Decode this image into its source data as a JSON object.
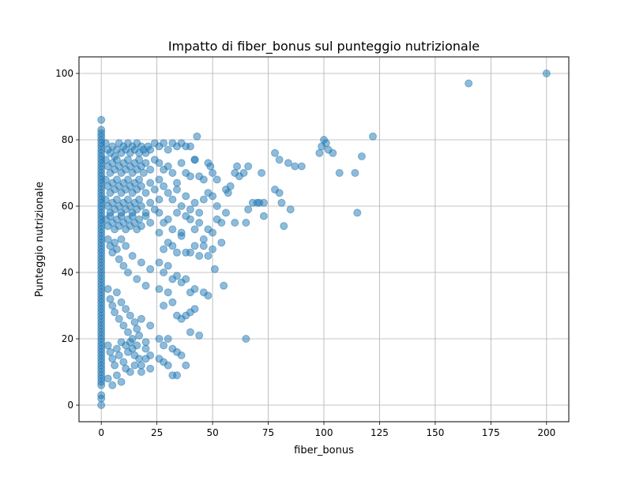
{
  "chart_data": {
    "type": "scatter",
    "title": "Impatto di fiber_bonus sul punteggio nutrizionale",
    "xlabel": "fiber_bonus",
    "ylabel": "Punteggio nutrizionale",
    "xlim": [
      -10,
      210
    ],
    "ylim": [
      -5,
      105
    ],
    "xticks": [
      0,
      25,
      50,
      75,
      100,
      125,
      150,
      175,
      200
    ],
    "yticks": [
      0,
      20,
      40,
      60,
      80,
      100
    ],
    "grid": true,
    "marker_color": "#1f77b4",
    "marker_alpha": 0.5,
    "points": [
      [
        0,
        86
      ],
      [
        0,
        83
      ],
      [
        0,
        82
      ],
      [
        0,
        81
      ],
      [
        0,
        80
      ],
      [
        0,
        79
      ],
      [
        0,
        78
      ],
      [
        0,
        77
      ],
      [
        0,
        76
      ],
      [
        0,
        75
      ],
      [
        0,
        74
      ],
      [
        0,
        73
      ],
      [
        0,
        72
      ],
      [
        0,
        71
      ],
      [
        0,
        70
      ],
      [
        0,
        69
      ],
      [
        0,
        68
      ],
      [
        0,
        67
      ],
      [
        0,
        66
      ],
      [
        0,
        65
      ],
      [
        0,
        64
      ],
      [
        0,
        63
      ],
      [
        0,
        62
      ],
      [
        0,
        61
      ],
      [
        0,
        60
      ],
      [
        0,
        59
      ],
      [
        0,
        58
      ],
      [
        0,
        57
      ],
      [
        0,
        56
      ],
      [
        0,
        55
      ],
      [
        0,
        54
      ],
      [
        0,
        53
      ],
      [
        0,
        52
      ],
      [
        0,
        51
      ],
      [
        0,
        50
      ],
      [
        0,
        49
      ],
      [
        0,
        48
      ],
      [
        0,
        47
      ],
      [
        0,
        46
      ],
      [
        0,
        45
      ],
      [
        0,
        44
      ],
      [
        0,
        43
      ],
      [
        0,
        42
      ],
      [
        0,
        41
      ],
      [
        0,
        40
      ],
      [
        0,
        39
      ],
      [
        0,
        38
      ],
      [
        0,
        37
      ],
      [
        0,
        36
      ],
      [
        0,
        35
      ],
      [
        0,
        34
      ],
      [
        0,
        33
      ],
      [
        0,
        32
      ],
      [
        0,
        31
      ],
      [
        0,
        30
      ],
      [
        0,
        29
      ],
      [
        0,
        28
      ],
      [
        0,
        27
      ],
      [
        0,
        26
      ],
      [
        0,
        25
      ],
      [
        0,
        24
      ],
      [
        0,
        23
      ],
      [
        0,
        22
      ],
      [
        0,
        21
      ],
      [
        0,
        20
      ],
      [
        0,
        19
      ],
      [
        0,
        18
      ],
      [
        0,
        17
      ],
      [
        0,
        16
      ],
      [
        0,
        15
      ],
      [
        0,
        14
      ],
      [
        0,
        13
      ],
      [
        0,
        12
      ],
      [
        0,
        11
      ],
      [
        0,
        10
      ],
      [
        0,
        9
      ],
      [
        0,
        8
      ],
      [
        0,
        7
      ],
      [
        0,
        6
      ],
      [
        0,
        3
      ],
      [
        0,
        2
      ],
      [
        0,
        0
      ],
      [
        2,
        79
      ],
      [
        3,
        77
      ],
      [
        4,
        76
      ],
      [
        5,
        78
      ],
      [
        6,
        75
      ],
      [
        7,
        77
      ],
      [
        8,
        79
      ],
      [
        9,
        76
      ],
      [
        10,
        78
      ],
      [
        11,
        77
      ],
      [
        12,
        79
      ],
      [
        13,
        76
      ],
      [
        14,
        78
      ],
      [
        15,
        77
      ],
      [
        16,
        79
      ],
      [
        17,
        76
      ],
      [
        18,
        78
      ],
      [
        19,
        77
      ],
      [
        20,
        76
      ],
      [
        21,
        78
      ],
      [
        22,
        77
      ],
      [
        2,
        74
      ],
      [
        3,
        72
      ],
      [
        4,
        70
      ],
      [
        5,
        73
      ],
      [
        6,
        71
      ],
      [
        7,
        74
      ],
      [
        8,
        72
      ],
      [
        9,
        70
      ],
      [
        10,
        73
      ],
      [
        11,
        71
      ],
      [
        12,
        74
      ],
      [
        13,
        72
      ],
      [
        14,
        70
      ],
      [
        15,
        73
      ],
      [
        16,
        71
      ],
      [
        17,
        74
      ],
      [
        18,
        72
      ],
      [
        19,
        70
      ],
      [
        20,
        73
      ],
      [
        22,
        71
      ],
      [
        24,
        74
      ],
      [
        2,
        68
      ],
      [
        3,
        66
      ],
      [
        4,
        64
      ],
      [
        5,
        67
      ],
      [
        6,
        65
      ],
      [
        7,
        68
      ],
      [
        8,
        66
      ],
      [
        9,
        64
      ],
      [
        10,
        67
      ],
      [
        11,
        65
      ],
      [
        12,
        68
      ],
      [
        13,
        66
      ],
      [
        14,
        64
      ],
      [
        15,
        67
      ],
      [
        16,
        65
      ],
      [
        17,
        68
      ],
      [
        18,
        66
      ],
      [
        20,
        64
      ],
      [
        22,
        67
      ],
      [
        24,
        65
      ],
      [
        26,
        68
      ],
      [
        2,
        62
      ],
      [
        3,
        60
      ],
      [
        4,
        58
      ],
      [
        5,
        61
      ],
      [
        6,
        59
      ],
      [
        7,
        62
      ],
      [
        8,
        60
      ],
      [
        9,
        58
      ],
      [
        10,
        61
      ],
      [
        11,
        59
      ],
      [
        12,
        62
      ],
      [
        13,
        60
      ],
      [
        14,
        58
      ],
      [
        15,
        61
      ],
      [
        16,
        59
      ],
      [
        17,
        62
      ],
      [
        18,
        60
      ],
      [
        20,
        58
      ],
      [
        22,
        61
      ],
      [
        24,
        59
      ],
      [
        26,
        62
      ],
      [
        2,
        56
      ],
      [
        3,
        54
      ],
      [
        4,
        57
      ],
      [
        5,
        55
      ],
      [
        6,
        53
      ],
      [
        7,
        56
      ],
      [
        8,
        54
      ],
      [
        9,
        57
      ],
      [
        10,
        55
      ],
      [
        11,
        53
      ],
      [
        12,
        56
      ],
      [
        13,
        54
      ],
      [
        14,
        57
      ],
      [
        15,
        55
      ],
      [
        16,
        53
      ],
      [
        17,
        56
      ],
      [
        18,
        54
      ],
      [
        20,
        57
      ],
      [
        22,
        55
      ],
      [
        3,
        50
      ],
      [
        4,
        48
      ],
      [
        5,
        46
      ],
      [
        6,
        49
      ],
      [
        7,
        47
      ],
      [
        8,
        44
      ],
      [
        9,
        50
      ],
      [
        10,
        42
      ],
      [
        11,
        48
      ],
      [
        12,
        40
      ],
      [
        14,
        45
      ],
      [
        16,
        38
      ],
      [
        18,
        43
      ],
      [
        20,
        36
      ],
      [
        22,
        41
      ],
      [
        3,
        35
      ],
      [
        4,
        32
      ],
      [
        5,
        30
      ],
      [
        6,
        28
      ],
      [
        7,
        34
      ],
      [
        8,
        26
      ],
      [
        9,
        31
      ],
      [
        10,
        24
      ],
      [
        11,
        29
      ],
      [
        12,
        22
      ],
      [
        13,
        27
      ],
      [
        14,
        20
      ],
      [
        15,
        25
      ],
      [
        16,
        23
      ],
      [
        17,
        21
      ],
      [
        18,
        26
      ],
      [
        20,
        19
      ],
      [
        22,
        24
      ],
      [
        3,
        18
      ],
      [
        4,
        16
      ],
      [
        5,
        14
      ],
      [
        6,
        12
      ],
      [
        7,
        17
      ],
      [
        8,
        15
      ],
      [
        9,
        19
      ],
      [
        10,
        13
      ],
      [
        11,
        18
      ],
      [
        12,
        16
      ],
      [
        13,
        19
      ],
      [
        14,
        17
      ],
      [
        15,
        15
      ],
      [
        16,
        18
      ],
      [
        17,
        14
      ],
      [
        18,
        12
      ],
      [
        20,
        17
      ],
      [
        22,
        15
      ],
      [
        3,
        8
      ],
      [
        5,
        6
      ],
      [
        7,
        9
      ],
      [
        9,
        7
      ],
      [
        11,
        11
      ],
      [
        13,
        10
      ],
      [
        15,
        12
      ],
      [
        18,
        10
      ],
      [
        20,
        14
      ],
      [
        22,
        11
      ],
      [
        24,
        79
      ],
      [
        26,
        78
      ],
      [
        28,
        79
      ],
      [
        30,
        77
      ],
      [
        32,
        79
      ],
      [
        34,
        78
      ],
      [
        36,
        79
      ],
      [
        38,
        78
      ],
      [
        40,
        78
      ],
      [
        42,
        74
      ],
      [
        43,
        81
      ],
      [
        26,
        73
      ],
      [
        28,
        71
      ],
      [
        30,
        72
      ],
      [
        32,
        70
      ],
      [
        34,
        67
      ],
      [
        36,
        73
      ],
      [
        38,
        70
      ],
      [
        40,
        69
      ],
      [
        42,
        74
      ],
      [
        44,
        69
      ],
      [
        46,
        68
      ],
      [
        48,
        73
      ],
      [
        49,
        72
      ],
      [
        50,
        70
      ],
      [
        52,
        68
      ],
      [
        28,
        66
      ],
      [
        30,
        64
      ],
      [
        32,
        62
      ],
      [
        34,
        65
      ],
      [
        36,
        60
      ],
      [
        38,
        63
      ],
      [
        40,
        59
      ],
      [
        42,
        61
      ],
      [
        44,
        58
      ],
      [
        46,
        62
      ],
      [
        48,
        64
      ],
      [
        50,
        63
      ],
      [
        52,
        60
      ],
      [
        54,
        55
      ],
      [
        56,
        65
      ],
      [
        57,
        64
      ],
      [
        58,
        66
      ],
      [
        60,
        70
      ],
      [
        61,
        72
      ],
      [
        62,
        69
      ],
      [
        64,
        70
      ],
      [
        66,
        72
      ],
      [
        26,
        58
      ],
      [
        28,
        55
      ],
      [
        30,
        56
      ],
      [
        32,
        53
      ],
      [
        34,
        58
      ],
      [
        36,
        52
      ],
      [
        38,
        57
      ],
      [
        40,
        56
      ],
      [
        42,
        53
      ],
      [
        44,
        55
      ],
      [
        46,
        50
      ],
      [
        48,
        53
      ],
      [
        50,
        52
      ],
      [
        52,
        56
      ],
      [
        54,
        49
      ],
      [
        56,
        58
      ],
      [
        60,
        55
      ],
      [
        65,
        55
      ],
      [
        66,
        59
      ],
      [
        68,
        61
      ],
      [
        26,
        52
      ],
      [
        28,
        47
      ],
      [
        30,
        49
      ],
      [
        32,
        48
      ],
      [
        34,
        46
      ],
      [
        36,
        51
      ],
      [
        38,
        46
      ],
      [
        40,
        46
      ],
      [
        42,
        48
      ],
      [
        44,
        45
      ],
      [
        46,
        48
      ],
      [
        48,
        45
      ],
      [
        50,
        47
      ],
      [
        51,
        41
      ],
      [
        26,
        43
      ],
      [
        28,
        40
      ],
      [
        30,
        42
      ],
      [
        32,
        38
      ],
      [
        34,
        39
      ],
      [
        36,
        37
      ],
      [
        38,
        38
      ],
      [
        40,
        34
      ],
      [
        42,
        35
      ],
      [
        46,
        34
      ],
      [
        48,
        33
      ],
      [
        55,
        36
      ],
      [
        26,
        35
      ],
      [
        28,
        30
      ],
      [
        30,
        34
      ],
      [
        32,
        31
      ],
      [
        34,
        27
      ],
      [
        36,
        26
      ],
      [
        38,
        27
      ],
      [
        40,
        28
      ],
      [
        42,
        29
      ],
      [
        26,
        20
      ],
      [
        28,
        18
      ],
      [
        30,
        20
      ],
      [
        32,
        17
      ],
      [
        34,
        16
      ],
      [
        36,
        15
      ],
      [
        40,
        22
      ],
      [
        44,
        21
      ],
      [
        26,
        14
      ],
      [
        28,
        13
      ],
      [
        30,
        12
      ],
      [
        32,
        9
      ],
      [
        34,
        9
      ],
      [
        38,
        12
      ],
      [
        65,
        20
      ],
      [
        78,
        76
      ],
      [
        80,
        74
      ],
      [
        84,
        73
      ],
      [
        87,
        72
      ],
      [
        90,
        72
      ],
      [
        72,
        70
      ],
      [
        70,
        61
      ],
      [
        71,
        61
      ],
      [
        73,
        61
      ],
      [
        78,
        65
      ],
      [
        80,
        64
      ],
      [
        81,
        61
      ],
      [
        85,
        59
      ],
      [
        73,
        57
      ],
      [
        82,
        54
      ],
      [
        98,
        76
      ],
      [
        99,
        78
      ],
      [
        100,
        80
      ],
      [
        101,
        79
      ],
      [
        102,
        77
      ],
      [
        104,
        76
      ],
      [
        107,
        70
      ],
      [
        114,
        70
      ],
      [
        115,
        58
      ],
      [
        117,
        75
      ],
      [
        122,
        81
      ],
      [
        165,
        97
      ],
      [
        200,
        100
      ]
    ]
  }
}
